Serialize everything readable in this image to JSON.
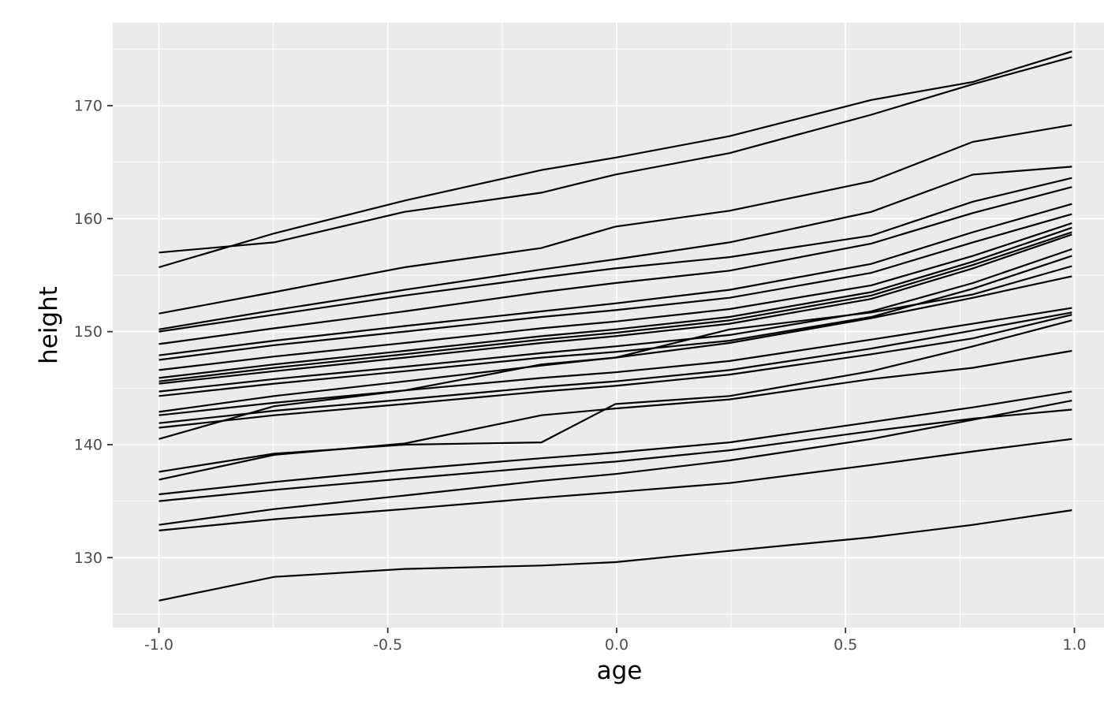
{
  "chart_data": {
    "type": "line",
    "title": "",
    "xlabel": "age",
    "ylabel": "height",
    "x_ticks": [
      -1.0,
      -0.5,
      0.0,
      0.5,
      1.0
    ],
    "x_tick_labels": [
      "-1.0",
      "-0.5",
      "0.0",
      "0.5",
      "1.0"
    ],
    "x_minor_ticks": [
      -0.75,
      -0.25,
      0.25,
      0.75
    ],
    "y_ticks": [
      130,
      140,
      150,
      160,
      170
    ],
    "y_tick_labels": [
      "130",
      "140",
      "150",
      "160",
      "170"
    ],
    "y_minor_ticks": [
      125,
      135,
      145,
      155,
      165,
      175
    ],
    "xlim": [
      -1.1,
      1.094
    ],
    "ylim": [
      123.8,
      177.4
    ],
    "grid": true,
    "legend_position": "none",
    "x": [
      -1.0,
      -0.7479,
      -0.463,
      -0.1643,
      -0.0027,
      0.2466,
      0.5562,
      0.7781,
      0.9945
    ],
    "series": [
      {
        "values": [
          157.0,
          157.9,
          160.6,
          162.3,
          163.9,
          165.8,
          169.2,
          171.9,
          174.3
        ]
      },
      {
        "values": [
          155.7,
          158.7,
          161.6,
          164.3,
          165.4,
          167.3,
          170.5,
          172.1,
          174.8
        ]
      },
      {
        "values": [
          151.6,
          153.5,
          155.7,
          157.4,
          159.3,
          160.7,
          163.3,
          166.8,
          168.3
        ]
      },
      {
        "values": [
          150.2,
          151.9,
          153.7,
          155.5,
          156.4,
          157.9,
          160.6,
          163.9,
          164.6
        ]
      },
      {
        "values": [
          150.0,
          151.5,
          153.2,
          154.8,
          155.6,
          156.6,
          158.5,
          161.5,
          163.6
        ]
      },
      {
        "values": [
          148.9,
          150.3,
          151.8,
          153.5,
          154.3,
          155.4,
          157.8,
          160.5,
          162.8
        ]
      },
      {
        "values": [
          147.9,
          149.2,
          150.5,
          151.8,
          152.5,
          153.7,
          156.0,
          158.8,
          161.3
        ]
      },
      {
        "values": [
          147.5,
          148.8,
          150.0,
          151.3,
          151.9,
          153.0,
          155.2,
          157.9,
          160.4
        ]
      },
      {
        "values": [
          146.6,
          147.8,
          149.0,
          150.3,
          150.9,
          152.0,
          154.1,
          156.7,
          159.6
        ]
      },
      {
        "values": [
          145.9,
          147.1,
          148.3,
          149.6,
          150.2,
          151.3,
          153.5,
          156.2,
          159.2
        ]
      },
      {
        "values": [
          145.6,
          146.8,
          148.0,
          149.3,
          149.9,
          151.0,
          153.2,
          155.9,
          158.8
        ]
      },
      {
        "values": [
          145.4,
          146.5,
          147.7,
          149.0,
          149.6,
          150.7,
          152.9,
          155.6,
          158.6
        ]
      },
      {
        "values": [
          144.7,
          145.8,
          146.9,
          148.1,
          148.7,
          149.7,
          151.8,
          154.3,
          157.3
        ]
      },
      {
        "values": [
          144.3,
          145.4,
          146.5,
          147.7,
          148.2,
          149.2,
          151.3,
          153.8,
          156.7
        ]
      },
      {
        "values": [
          142.9,
          144.3,
          145.6,
          147.0,
          147.7,
          149.0,
          151.2,
          153.0,
          154.9
        ]
      },
      {
        "values": [
          142.6,
          143.7,
          144.8,
          145.9,
          146.4,
          147.4,
          149.3,
          150.7,
          152.1
        ]
      },
      {
        "values": [
          141.9,
          143.0,
          144.0,
          145.1,
          145.6,
          146.6,
          148.5,
          150.1,
          151.7
        ]
      },
      {
        "values": [
          141.5,
          142.6,
          143.6,
          144.7,
          145.2,
          146.2,
          148.0,
          149.4,
          151.5
        ]
      },
      {
        "values": [
          140.5,
          143.4,
          144.8,
          147.1,
          147.7,
          150.2,
          151.7,
          153.3,
          155.8
        ]
      },
      {
        "values": [
          137.6,
          139.2,
          140.0,
          140.2,
          143.6,
          144.3,
          146.5,
          148.7,
          151.0
        ]
      },
      {
        "values": [
          136.9,
          139.1,
          140.1,
          142.6,
          143.2,
          144.0,
          145.8,
          146.8,
          148.3
        ]
      },
      {
        "values": [
          135.6,
          136.7,
          137.8,
          138.8,
          139.3,
          140.2,
          142.0,
          143.3,
          144.7
        ]
      },
      {
        "values": [
          135.0,
          136.0,
          137.0,
          138.0,
          138.5,
          139.5,
          141.2,
          142.3,
          143.1
        ]
      },
      {
        "values": [
          132.9,
          134.3,
          135.5,
          136.8,
          137.4,
          138.6,
          140.5,
          142.2,
          143.9
        ]
      },
      {
        "values": [
          132.4,
          133.4,
          134.3,
          135.3,
          135.8,
          136.6,
          138.2,
          139.4,
          140.5
        ]
      },
      {
        "values": [
          126.2,
          128.3,
          129.0,
          129.3,
          129.6,
          130.6,
          131.8,
          132.9,
          134.2
        ]
      }
    ],
    "colors": {
      "panel_background": "#EBEBEB",
      "gridline": "#FFFFFF",
      "line": "#000000",
      "tick_mark": "#333333",
      "tick_label": "#4D4D4D",
      "axis_title": "#000000",
      "page_background": "#FFFFFF"
    }
  }
}
